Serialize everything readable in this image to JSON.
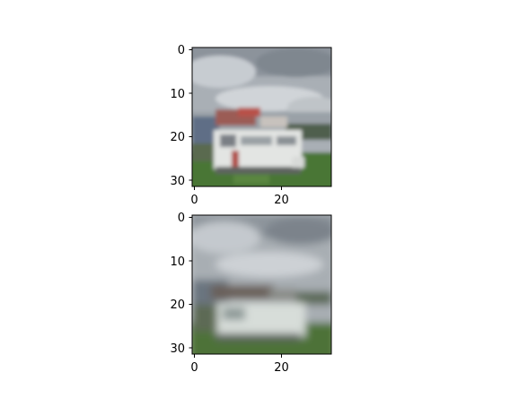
{
  "figure": {
    "panels": [
      {
        "name": "top-image-panel",
        "description_free": true,
        "x_ticks": [
          {
            "value": 0,
            "label": "0"
          },
          {
            "value": 20,
            "label": "20"
          }
        ],
        "y_ticks": [
          {
            "value": 0,
            "label": "0"
          },
          {
            "value": 10,
            "label": "10"
          },
          {
            "value": 20,
            "label": "20"
          },
          {
            "value": 30,
            "label": "30"
          }
        ]
      },
      {
        "name": "bottom-image-panel",
        "x_ticks": [
          {
            "value": 0,
            "label": "0"
          },
          {
            "value": 20,
            "label": "20"
          }
        ],
        "y_ticks": [
          {
            "value": 0,
            "label": "0"
          },
          {
            "value": 10,
            "label": "10"
          },
          {
            "value": 20,
            "label": "20"
          },
          {
            "value": 30,
            "label": "30"
          }
        ]
      }
    ],
    "image_extent": [
      -0.5,
      31.5
    ],
    "colors": {
      "sky_light": "#c9ced2",
      "sky_dark": "#7d858e",
      "grass": "#4f7a3a",
      "truck": "#e2e4e2",
      "roof_red": "#a0504a",
      "trees": "#4a5a45"
    }
  }
}
